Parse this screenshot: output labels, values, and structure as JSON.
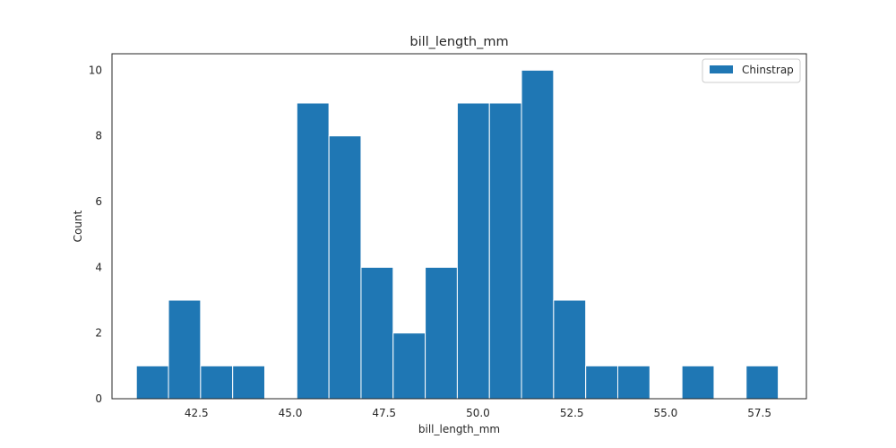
{
  "chart_data": {
    "type": "bar",
    "title": "bill_length_mm",
    "xlabel": "bill_length_mm",
    "ylabel": "Count",
    "xlim": [
      40.25,
      58.75
    ],
    "ylim": [
      0,
      10.5
    ],
    "grid": false,
    "legend_position": "top-right",
    "xticks": [
      "42.5",
      "45.0",
      "47.5",
      "50.0",
      "52.5",
      "55.0",
      "57.5"
    ],
    "yticks": [
      "0",
      "2",
      "4",
      "6",
      "8",
      "10"
    ],
    "bin_edges": [
      40.9,
      41.755,
      42.61,
      43.465,
      44.32,
      45.175,
      46.03,
      46.885,
      47.74,
      48.595,
      49.45,
      50.305,
      51.16,
      52.015,
      52.87,
      53.725,
      54.58,
      55.435,
      56.29,
      57.145,
      58.0
    ],
    "series": [
      {
        "name": "Chinstrap",
        "color": "#1f77b4",
        "values": [
          1,
          3,
          1,
          1,
          0,
          9,
          8,
          4,
          2,
          4,
          9,
          9,
          10,
          3,
          1,
          1,
          0,
          1,
          0,
          1
        ]
      }
    ]
  }
}
